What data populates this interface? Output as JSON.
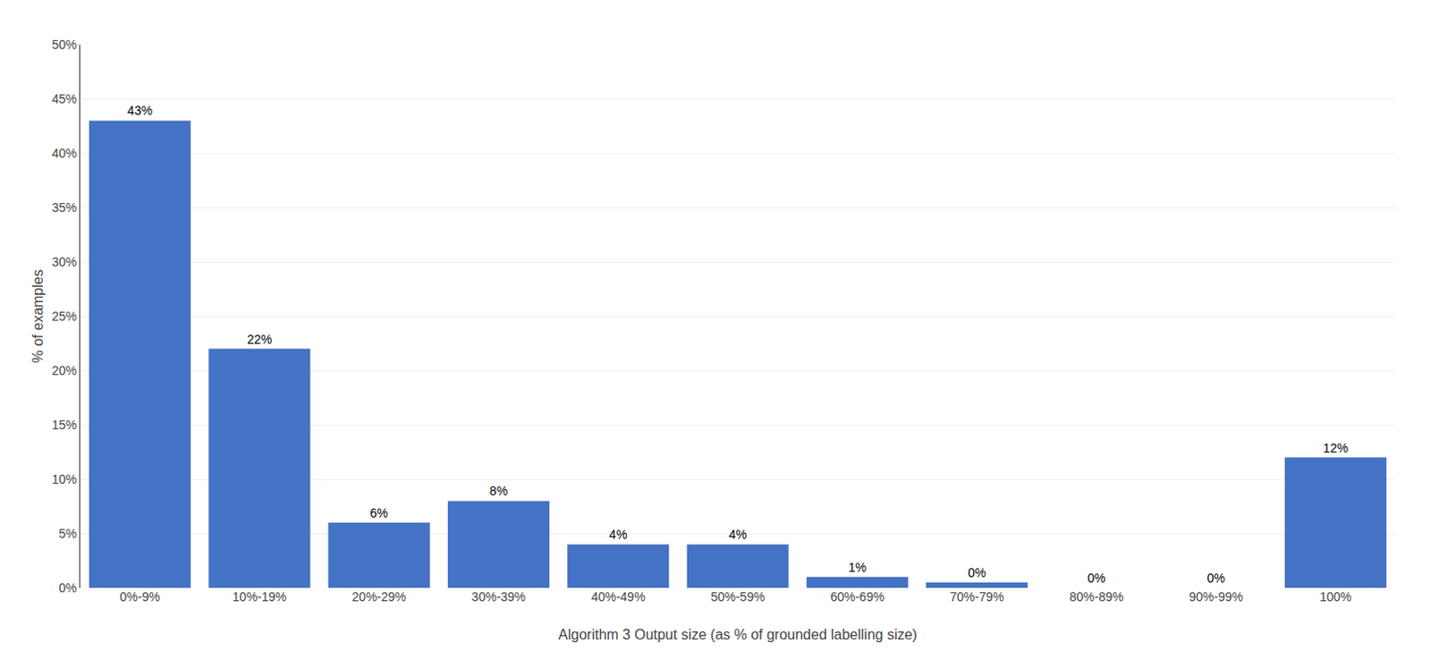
{
  "chart_data": {
    "type": "bar",
    "xlabel": "Algorithm 3 Output size (as % of grounded labelling size)",
    "ylabel": "% of examples",
    "categories": [
      "0%-9%",
      "10%-19%",
      "20%-29%",
      "30%-39%",
      "40%-49%",
      "50%-59%",
      "60%-69%",
      "70%-79%",
      "80%-89%",
      "90%-99%",
      "100%"
    ],
    "values": [
      43,
      22,
      6,
      8,
      4,
      4,
      1,
      0.5,
      0,
      0,
      12
    ],
    "value_labels": [
      "43%",
      "22%",
      "6%",
      "8%",
      "4%",
      "4%",
      "1%",
      "0%",
      "0%",
      "0%",
      "12%"
    ],
    "data_labels": true,
    "color": "#4472C4",
    "ylim": [
      0,
      50
    ],
    "yticks": [
      {
        "value": 0,
        "label": "0%"
      },
      {
        "value": 5,
        "label": "5%"
      },
      {
        "value": 10,
        "label": "10%"
      },
      {
        "value": 15,
        "label": "15%"
      },
      {
        "value": 20,
        "label": "20%"
      },
      {
        "value": 25,
        "label": "25%"
      },
      {
        "value": 30,
        "label": "30%"
      },
      {
        "value": 35,
        "label": "35%"
      },
      {
        "value": 40,
        "label": "40%"
      },
      {
        "value": 45,
        "label": "45%"
      },
      {
        "value": 50,
        "label": "50%"
      }
    ],
    "grid": true
  }
}
